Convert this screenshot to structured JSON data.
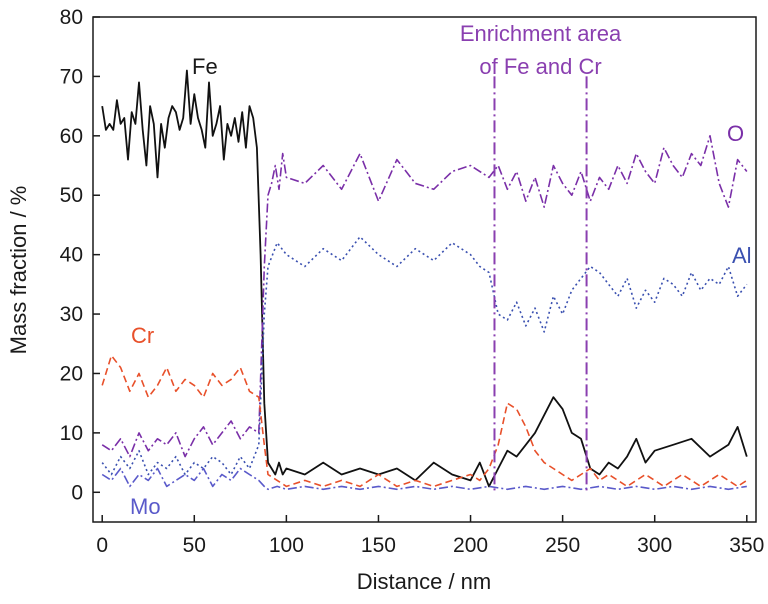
{
  "chart_data": {
    "type": "line",
    "xlabel": "Distance / nm",
    "ylabel": "Mass fraction / %",
    "xlim": [
      -5,
      355
    ],
    "ylim": [
      -5,
      80
    ],
    "x_ticks": [
      0,
      50,
      100,
      150,
      200,
      250,
      300,
      350
    ],
    "y_ticks": [
      0,
      10,
      20,
      30,
      40,
      50,
      60,
      70,
      80
    ],
    "grid": false,
    "legend": "none",
    "annotation": {
      "lines": [
        "Enrichment area",
        "of Fe and Cr"
      ],
      "color": "#8a3fb0",
      "x_start": 213,
      "x_end": 263,
      "y_start": 0,
      "y_end": 70
    },
    "series": [
      {
        "name": "Fe",
        "color": "#111111",
        "dash": "solid",
        "x": [
          0,
          2,
          4,
          6,
          8,
          10,
          12,
          14,
          16,
          18,
          20,
          22,
          24,
          26,
          28,
          30,
          32,
          34,
          36,
          38,
          40,
          42,
          44,
          46,
          48,
          50,
          52,
          54,
          56,
          58,
          60,
          62,
          64,
          66,
          68,
          70,
          72,
          74,
          76,
          78,
          80,
          82,
          84,
          86,
          88,
          90,
          92,
          94,
          96,
          98,
          100,
          110,
          120,
          130,
          140,
          150,
          160,
          170,
          180,
          190,
          200,
          205,
          210,
          215,
          220,
          225,
          230,
          235,
          240,
          245,
          250,
          255,
          260,
          265,
          270,
          275,
          280,
          285,
          290,
          295,
          300,
          310,
          320,
          330,
          340,
          345,
          350
        ],
        "values": [
          65,
          61,
          62,
          61,
          66,
          62,
          63,
          56,
          64,
          62,
          69,
          61,
          55,
          65,
          62,
          53,
          62,
          58,
          63,
          65,
          64,
          61,
          63,
          71,
          62,
          67,
          63,
          61,
          58,
          69,
          60,
          62,
          65,
          56,
          62,
          60,
          63,
          59,
          64,
          58,
          65,
          63,
          58,
          40,
          15,
          5,
          4,
          3,
          5,
          3,
          4,
          3,
          5,
          3,
          4,
          3,
          4,
          2,
          5,
          3,
          2,
          5,
          1,
          4,
          7,
          6,
          8,
          10,
          13,
          16,
          14,
          10,
          9,
          4,
          3,
          5,
          4,
          6,
          9,
          5,
          7,
          8,
          9,
          6,
          8,
          11,
          6
        ]
      },
      {
        "name": "O",
        "color": "#7a2fa8",
        "dash": "dashdot",
        "x": [
          0,
          5,
          10,
          15,
          20,
          25,
          30,
          35,
          40,
          45,
          50,
          55,
          60,
          65,
          70,
          75,
          80,
          85,
          88,
          90,
          92,
          94,
          96,
          98,
          100,
          110,
          120,
          130,
          140,
          150,
          160,
          170,
          180,
          190,
          200,
          210,
          215,
          220,
          225,
          230,
          235,
          240,
          245,
          250,
          255,
          260,
          265,
          270,
          275,
          280,
          285,
          290,
          295,
          300,
          305,
          310,
          315,
          320,
          325,
          330,
          335,
          340,
          345,
          350
        ],
        "values": [
          8,
          7,
          9,
          6,
          10,
          7,
          9,
          8,
          10,
          6,
          9,
          11,
          8,
          10,
          12,
          9,
          11,
          10,
          38,
          50,
          52,
          55,
          51,
          57,
          53,
          52,
          55,
          51,
          57,
          49,
          56,
          52,
          51,
          54,
          55,
          53,
          55,
          51,
          54,
          49,
          53,
          48,
          55,
          52,
          50,
          54,
          49,
          53,
          51,
          55,
          52,
          57,
          54,
          52,
          58,
          55,
          53,
          57,
          55,
          60,
          52,
          48,
          56,
          54
        ]
      },
      {
        "name": "Al",
        "color": "#3a50b0",
        "dash": "dotted",
        "x": [
          0,
          5,
          10,
          15,
          20,
          25,
          30,
          35,
          40,
          45,
          50,
          55,
          60,
          65,
          70,
          75,
          80,
          85,
          88,
          90,
          95,
          100,
          110,
          120,
          130,
          140,
          150,
          160,
          170,
          180,
          190,
          200,
          205,
          210,
          215,
          220,
          225,
          230,
          235,
          240,
          245,
          250,
          255,
          260,
          265,
          270,
          275,
          280,
          285,
          290,
          295,
          300,
          305,
          310,
          315,
          320,
          325,
          330,
          335,
          340,
          345,
          350
        ],
        "values": [
          5,
          3,
          6,
          4,
          7,
          3,
          5,
          4,
          6,
          3,
          5,
          4,
          6,
          5,
          3,
          6,
          4,
          8,
          30,
          38,
          42,
          40,
          38,
          41,
          39,
          43,
          40,
          38,
          41,
          39,
          42,
          40,
          38,
          37,
          30,
          29,
          32,
          28,
          31,
          27,
          33,
          30,
          34,
          36,
          38,
          37,
          35,
          33,
          36,
          31,
          34,
          32,
          36,
          35,
          33,
          37,
          34,
          36,
          35,
          38,
          33,
          35
        ]
      },
      {
        "name": "Cr",
        "color": "#e8502a",
        "dash": "dashed",
        "x": [
          0,
          5,
          10,
          15,
          20,
          25,
          30,
          35,
          40,
          45,
          50,
          55,
          60,
          65,
          70,
          75,
          80,
          85,
          88,
          90,
          95,
          100,
          110,
          120,
          130,
          140,
          150,
          160,
          170,
          180,
          190,
          200,
          205,
          210,
          215,
          220,
          225,
          230,
          235,
          240,
          245,
          250,
          255,
          260,
          265,
          270,
          275,
          280,
          285,
          290,
          295,
          300,
          305,
          310,
          315,
          320,
          325,
          330,
          335,
          340,
          345,
          350
        ],
        "values": [
          18,
          23,
          21,
          17,
          20,
          16,
          18,
          21,
          17,
          19,
          18,
          16,
          20,
          18,
          19,
          21,
          17,
          16,
          8,
          3,
          2,
          1,
          2,
          1,
          2,
          1,
          3,
          1,
          2,
          1,
          2,
          3,
          2,
          4,
          8,
          15,
          14,
          11,
          7,
          5,
          4,
          3,
          2,
          3,
          4,
          2,
          3,
          2,
          1,
          2,
          3,
          2,
          1,
          2,
          3,
          2,
          1,
          2,
          3,
          2,
          1,
          2
        ]
      },
      {
        "name": "Mo",
        "color": "#5a5aca",
        "dash": "dashdot",
        "x": [
          0,
          5,
          10,
          15,
          20,
          25,
          30,
          35,
          40,
          45,
          50,
          55,
          60,
          65,
          70,
          75,
          80,
          85,
          88,
          90,
          95,
          100,
          110,
          120,
          130,
          140,
          150,
          160,
          170,
          180,
          190,
          200,
          210,
          220,
          230,
          240,
          250,
          260,
          270,
          280,
          290,
          300,
          310,
          320,
          330,
          340,
          350
        ],
        "values": [
          3,
          2,
          4,
          1,
          3,
          2,
          4,
          1,
          2,
          3,
          2,
          4,
          1,
          3,
          2,
          4,
          3,
          2,
          1,
          0.5,
          1,
          0.5,
          1,
          0.5,
          1,
          0.5,
          1,
          0.5,
          1,
          0.5,
          1,
          0.5,
          1,
          0.5,
          1,
          0.5,
          1,
          0.5,
          1,
          0.5,
          1,
          0.5,
          1,
          0.5,
          1,
          0.5,
          1
        ]
      }
    ]
  }
}
